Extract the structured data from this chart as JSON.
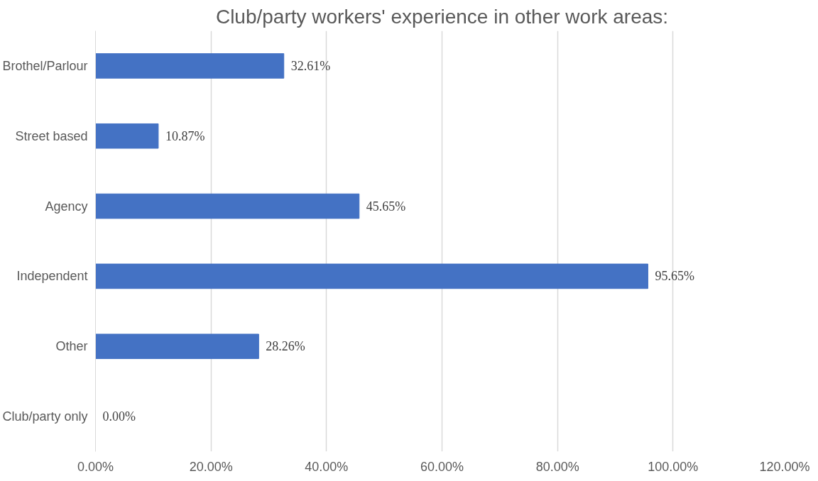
{
  "chart_data": {
    "type": "bar",
    "orientation": "horizontal",
    "title": "Club/party workers' experience in other work areas:",
    "categories": [
      "Brothel/Parlour",
      "Street based",
      "Agency",
      "Independent",
      "Other",
      "Club/party only"
    ],
    "values": [
      32.61,
      10.87,
      45.65,
      95.65,
      28.26,
      0.0
    ],
    "value_labels": [
      "32.61%",
      "10.87%",
      "45.65%",
      "95.65%",
      "28.26%",
      "0.00%"
    ],
    "color": "#4472c4",
    "xlim": [
      0,
      120
    ],
    "xticks": [
      {
        "value": 0,
        "label": "0.00%"
      },
      {
        "value": 20,
        "label": "20.00%"
      },
      {
        "value": 40,
        "label": "40.00%"
      },
      {
        "value": 60,
        "label": "60.00%"
      },
      {
        "value": 80,
        "label": "80.00%"
      },
      {
        "value": 100,
        "label": "100.00%"
      },
      {
        "value": 120,
        "label": "120.00%"
      }
    ],
    "grid": "x"
  }
}
